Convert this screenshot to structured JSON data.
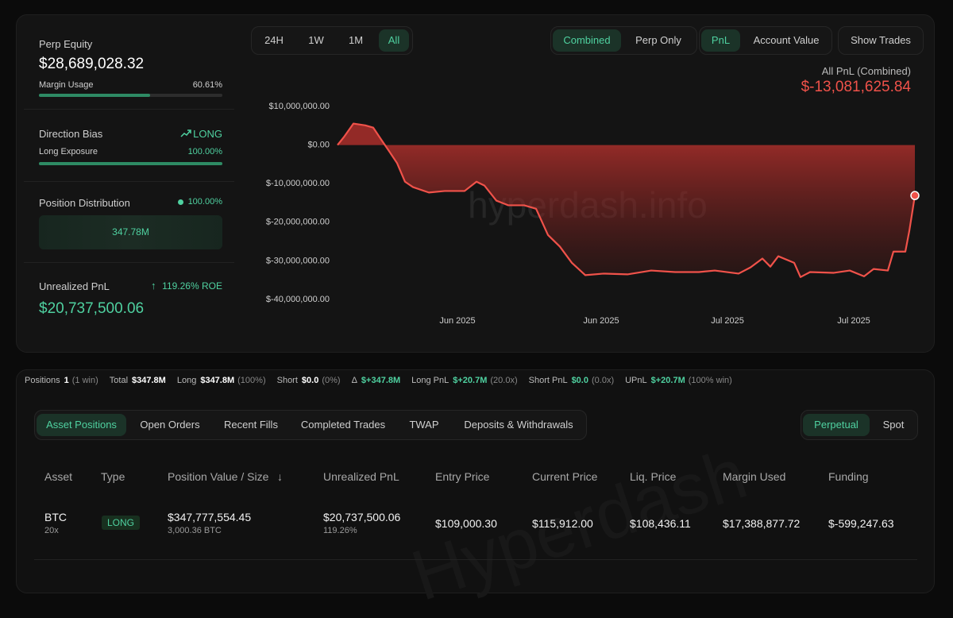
{
  "summary": {
    "equity_label": "Perp Equity",
    "equity": "$28,689,028.32",
    "margin_label": "Margin Usage",
    "margin": {
      "value": 60.61,
      "label": "60.61%"
    },
    "bias_label": "Direction Bias",
    "bias": "LONG",
    "exposure_label": "Long Exposure",
    "exposure": {
      "value": 100,
      "label": "100.00%"
    },
    "distribution_label": "Position Distribution",
    "distribution_pct": "100.00%",
    "distribution_value": "347.78M",
    "upnl_label": "Unrealized PnL",
    "roe": "119.26% ROE",
    "upnl": "$20,737,500.06"
  },
  "range_tabs": [
    "24H",
    "1W",
    "1M",
    "All"
  ],
  "mode_tabs": [
    "Combined",
    "Perp Only"
  ],
  "metric_tabs": [
    "PnL",
    "Account Value"
  ],
  "show_trades": "Show Trades",
  "pnl_summary": {
    "label": "All PnL (Combined)",
    "value": "$-13,081,625.84"
  },
  "chart_data": {
    "type": "line",
    "watermark": "hyperdash.info",
    "x": [
      0,
      1.1,
      2.75,
      4.81,
      6.19,
      7.57,
      8.94,
      10.32,
      11.69,
      13.07,
      15.82,
      18.57,
      22.01,
      24.07,
      25.45,
      27.51,
      29.57,
      32.32,
      34.39,
      36.45,
      38.51,
      40.58,
      42.92,
      46.08,
      50.21,
      54.33,
      58.46,
      62.59,
      65.34,
      69.46,
      71.53,
      73.59,
      74.97,
      76.34,
      79.09,
      80.19,
      81.84,
      85.97,
      88.72,
      91.2,
      92.85,
      95.32,
      96.29,
      98.35,
      99.04,
      100
    ],
    "series": [
      {
        "name": "PnL",
        "color": "#f0524a",
        "values": [
          0,
          2060000,
          5560000,
          5100000,
          4500000,
          1400000,
          -1600000,
          -4700000,
          -9500000,
          -10900000,
          -12300000,
          -11900000,
          -11900000,
          -9500000,
          -10500000,
          -14400000,
          -15600000,
          -15600000,
          -16500000,
          -23300000,
          -26300000,
          -30500000,
          -33700000,
          -33300000,
          -33500000,
          -32500000,
          -32900000,
          -32900000,
          -32500000,
          -33300000,
          -31700000,
          -29400000,
          -31500000,
          -28800000,
          -30500000,
          -34200000,
          -32900000,
          -33100000,
          -32500000,
          -34000000,
          -32100000,
          -32500000,
          -27600000,
          -27600000,
          -22200000,
          -13081625.84
        ]
      }
    ],
    "xlim": [
      0,
      100
    ],
    "xticks": [
      {
        "value": 20.77,
        "label": "Jun 2025"
      },
      {
        "value": 45.67,
        "label": "Jun 2025"
      },
      {
        "value": 67.54,
        "label": "Jul 2025"
      },
      {
        "value": 89.41,
        "label": "Jul 2025"
      }
    ],
    "ylim": [
      -40000000,
      10000000
    ],
    "yticks": [
      {
        "value": 10000000,
        "label": "$10,000,000.00"
      },
      {
        "value": 0,
        "label": "$0.00"
      },
      {
        "value": -10000000,
        "label": "$-10,000,000.00"
      },
      {
        "value": -20000000,
        "label": "$-20,000,000.00"
      },
      {
        "value": -30000000,
        "label": "$-30,000,000.00"
      },
      {
        "value": -40000000,
        "label": "$-40,000,000.00"
      }
    ],
    "grid": false
  },
  "stats": [
    {
      "label": "Positions",
      "value": "1",
      "note": "(1 win)"
    },
    {
      "label": "Total",
      "value": "$347.8M"
    },
    {
      "label": "Long",
      "value": "$347.8M",
      "note": "(100%)"
    },
    {
      "label": "Short",
      "value": "$0.0",
      "note": "(0%)"
    },
    {
      "label": "Δ",
      "value": "$+347.8M",
      "color": "#4fd1a0"
    },
    {
      "label": "Long PnL",
      "value": "$+20.7M",
      "note": "(20.0x)",
      "color": "#4fd1a0"
    },
    {
      "label": "Short PnL",
      "value": "$0.0",
      "note": "(0.0x)",
      "color": "#4fd1a0"
    },
    {
      "label": "UPnL",
      "value": "$+20.7M",
      "note": "(100% win)",
      "color": "#4fd1a0"
    }
  ],
  "table_tabs": [
    "Asset Positions",
    "Open Orders",
    "Recent Fills",
    "Completed Trades",
    "TWAP",
    "Deposits & Withdrawals"
  ],
  "market_tabs": [
    "Perpetual",
    "Spot"
  ],
  "table": {
    "watermark": "Hyperdash",
    "columns": [
      "Asset",
      "Type",
      "Position Value / Size",
      "Unrealized PnL",
      "Entry Price",
      "Current Price",
      "Liq. Price",
      "Margin Used",
      "Funding"
    ],
    "rows": [
      {
        "asset": "BTC",
        "leverage": "20x",
        "type": "LONG",
        "position_value": "$347,777,554.45",
        "size": "3,000.36 BTC",
        "unrealized_pnl": "$20,737,500.06",
        "roe": "119.26%",
        "entry_price": "$109,000.30",
        "current_price": "$115,912.00",
        "liq_price": "$108,436.11",
        "margin_used": "$17,388,877.72",
        "funding": "$-599,247.63"
      }
    ]
  }
}
